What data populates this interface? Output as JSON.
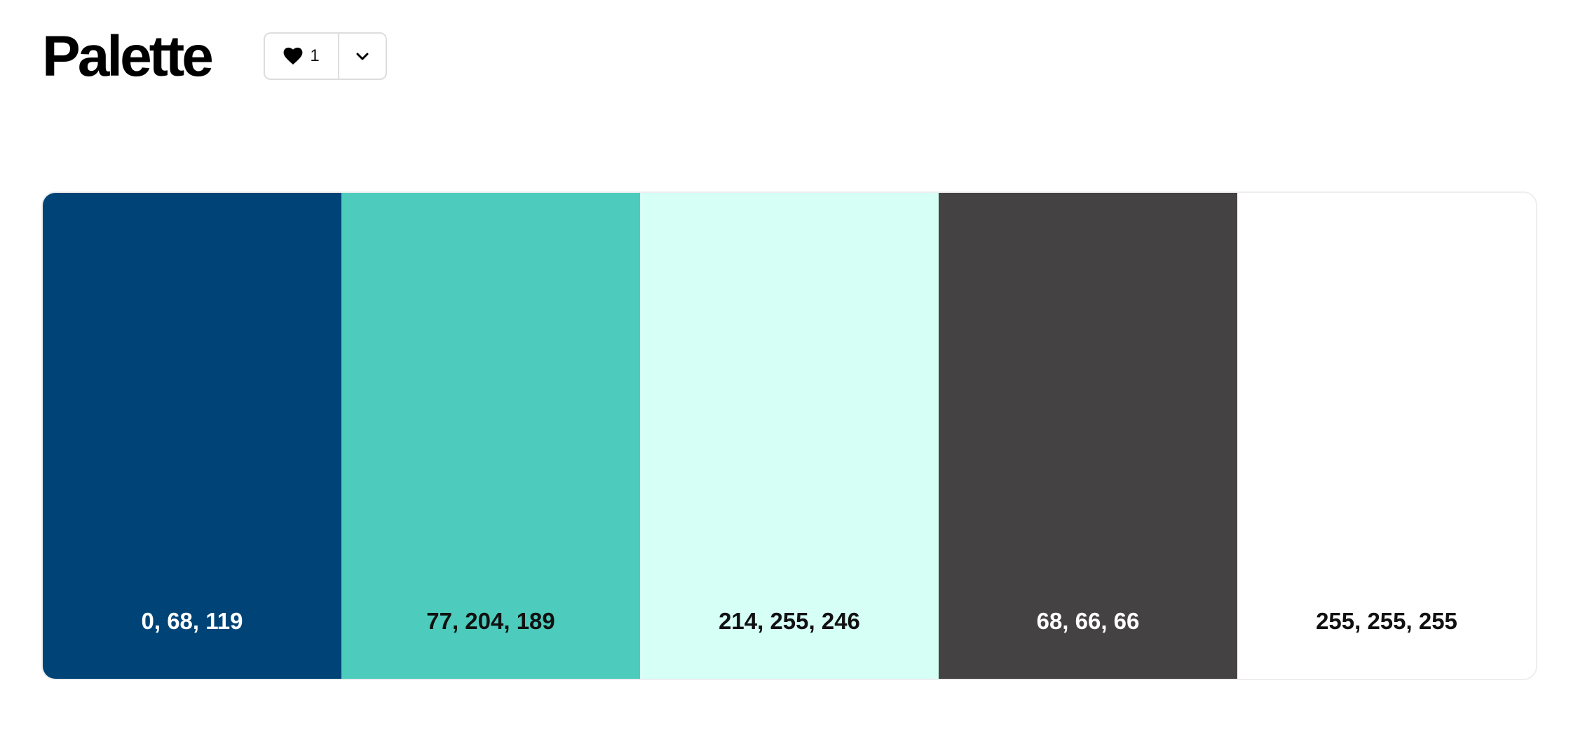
{
  "header": {
    "title": "Palette",
    "like_count": "1",
    "like_icon": "heart-icon",
    "menu_icon": "chevron-down-icon"
  },
  "palette": {
    "swatches": [
      {
        "label": "0, 68, 119",
        "color": "#004477",
        "text_color": "#ffffff"
      },
      {
        "label": "77, 204, 189",
        "color": "#4DCCBD",
        "text_color": "#111111"
      },
      {
        "label": "214, 255, 246",
        "color": "#D6FFF6",
        "text_color": "#111111"
      },
      {
        "label": "68, 66, 66",
        "color": "#444242",
        "text_color": "#ffffff"
      },
      {
        "label": "255, 255, 255",
        "color": "#FFFFFF",
        "text_color": "#111111"
      }
    ]
  }
}
